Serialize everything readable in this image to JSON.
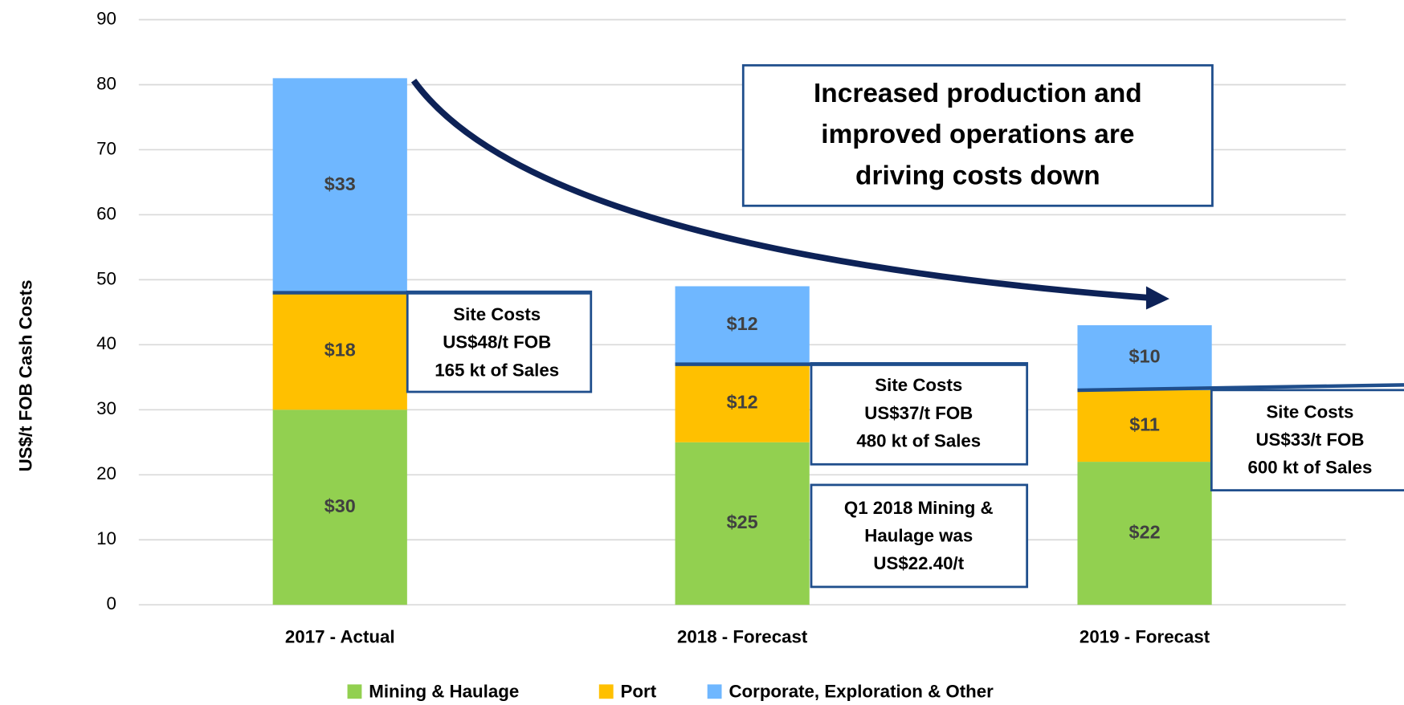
{
  "chart_data": {
    "type": "stacked_bar",
    "y_label": "US$/t FOB Cash Costs",
    "categories": [
      "2017 - Actual",
      "2018 - Forecast",
      "2019 - Forecast"
    ],
    "series": [
      {
        "name": "Mining & Haulage",
        "color": "#92d050",
        "values": [
          30,
          25,
          22
        ],
        "value_labels": [
          "$30",
          "$25",
          "$22"
        ]
      },
      {
        "name": "Port",
        "color": "#ffc000",
        "values": [
          18,
          12,
          11
        ],
        "value_labels": [
          "$18",
          "$12",
          "$11"
        ]
      },
      {
        "name": "Corporate, Exploration  & Other",
        "color": "#6fb7ff",
        "values": [
          33,
          12,
          10
        ],
        "value_labels": [
          "$33",
          "$12",
          "$10"
        ]
      }
    ],
    "ylim": [
      0,
      90
    ],
    "yticks": [
      0,
      10,
      20,
      30,
      40,
      50,
      60,
      70,
      80,
      90
    ],
    "grid": true,
    "legend": "bottom",
    "annotations": [
      {
        "lines": [
          "Increased production and",
          "improved operations are",
          "driving costs down"
        ]
      },
      {
        "lines": [
          "Site Costs",
          "US$48/t FOB",
          "165 kt of Sales"
        ]
      },
      {
        "lines": [
          "Site Costs",
          "US$37/t FOB",
          "480 kt of Sales"
        ]
      },
      {
        "lines": [
          "Site Costs",
          "US$33/t FOB",
          "600 kt of Sales"
        ]
      },
      {
        "lines": [
          "Q1 2018 Mining &",
          "Haulage was",
          "US$22.40/t"
        ]
      }
    ]
  }
}
